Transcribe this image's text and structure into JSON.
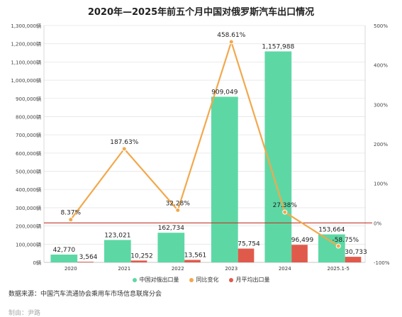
{
  "chart_data": {
    "type": "bar",
    "title": "2020年—2025年前五个月中国对俄罗斯汽车出口情况",
    "categories": [
      "2020",
      "2021",
      "2022",
      "2023",
      "2024",
      "2025.1-5"
    ],
    "series": [
      {
        "name": "中国对俄出口量",
        "type": "bar",
        "axis": "left",
        "color": "#5dd8a4",
        "values": [
          42770,
          123021,
          162734,
          909049,
          1157988,
          153664
        ],
        "labels": [
          "42,770",
          "123,021",
          "162,734",
          "909,049",
          "1,157,988",
          "153,664"
        ]
      },
      {
        "name": "同比变化",
        "type": "line",
        "axis": "right",
        "color": "#f2a84c",
        "values": [
          8.37,
          187.63,
          32.28,
          458.61,
          27.38,
          -58.75
        ],
        "labels": [
          "8.37%",
          "187.63%",
          "32.28%",
          "458.61%",
          "27.38%",
          "-58.75%"
        ]
      },
      {
        "name": "月平均出口量",
        "type": "bar",
        "axis": "left",
        "color": "#e05a4c",
        "values": [
          3564,
          10252,
          13561,
          75754,
          96499,
          30733
        ],
        "labels": [
          "3,564",
          "10,252",
          "13,561",
          "75,754",
          "96,499",
          "30,733"
        ]
      }
    ],
    "left_axis": {
      "ylim": [
        0,
        1300000
      ],
      "ticks": [
        0,
        100000,
        200000,
        300000,
        400000,
        500000,
        600000,
        700000,
        800000,
        900000,
        1000000,
        1100000,
        1200000,
        1300000
      ],
      "tick_labels": [
        "0辆",
        "100,000辆",
        "200,000辆",
        "300,000辆",
        "400,000辆",
        "500,000辆",
        "600,000辆",
        "700,000辆",
        "800,000辆",
        "900,000辆",
        "1,000,000辆",
        "1,100,000辆",
        "1,200,000辆",
        "1,300,000辆"
      ]
    },
    "right_axis": {
      "ylim": [
        -100,
        500
      ],
      "ticks": [
        -100,
        0,
        100,
        200,
        300,
        400,
        500
      ],
      "tick_labels": [
        "-100%",
        "0%",
        "100%",
        "200%",
        "300%",
        "400%",
        "500%"
      ]
    },
    "reference_line": {
      "axis": "right",
      "value": 0,
      "color": "#c0392b"
    },
    "legend_position": "bottom"
  },
  "source_text": "数据来源：中国汽车流通协会乘用车市场信息联席分会",
  "maker_text": "制由：尹路"
}
